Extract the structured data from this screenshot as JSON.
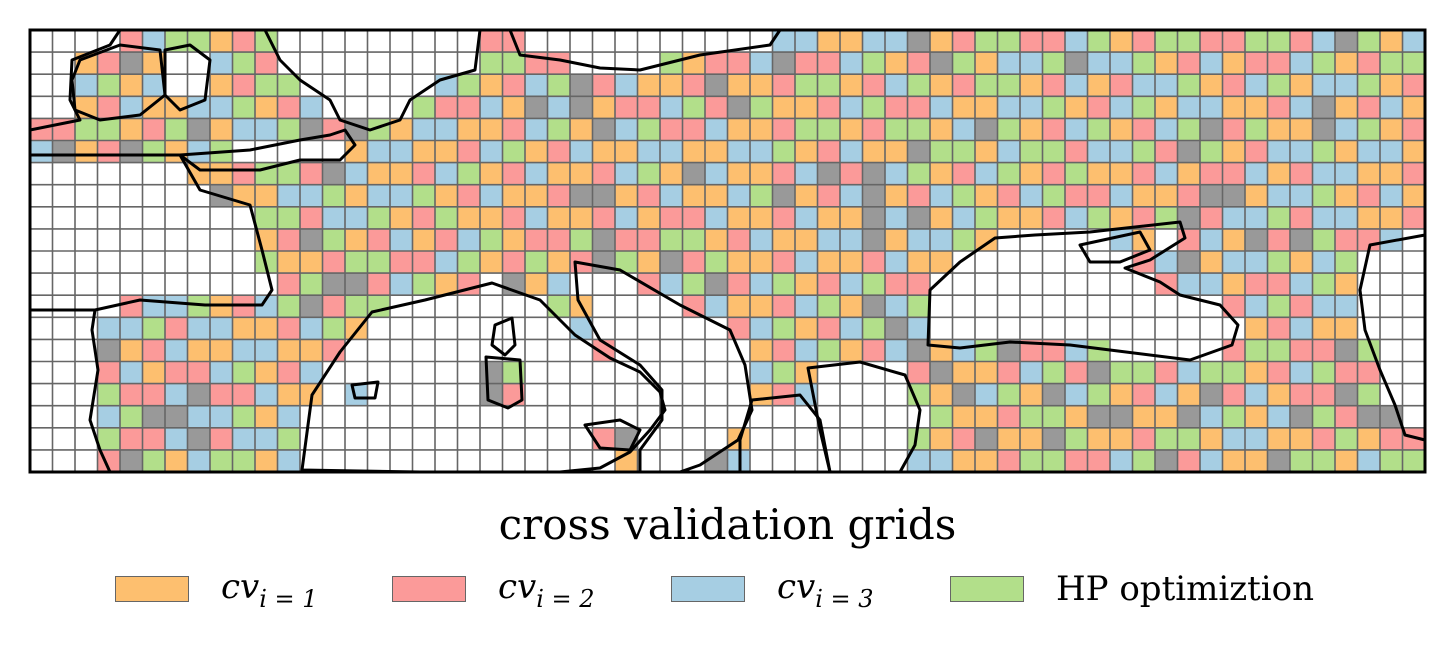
{
  "map": {
    "title": "cross validation grids",
    "grid": {
      "columns": 62,
      "rows": 20
    },
    "colors": {
      "cv_1": "#fdbf6f",
      "cv_2": "#fb9a99",
      "cv_3": "#a6cee3",
      "hp": "#b2df8a",
      "masked": "#999999",
      "sea": "#ffffff",
      "grid_line": "#666666",
      "coast": "#000000"
    }
  },
  "legend": [
    {
      "key": "cv_1",
      "base": "cv",
      "sub": "i = 1",
      "color": "#fdbf6f"
    },
    {
      "key": "cv_2",
      "base": "cv",
      "sub": "i = 2",
      "color": "#fb9a99"
    },
    {
      "key": "cv_3",
      "base": "cv",
      "sub": "i = 3",
      "color": "#a6cee3"
    },
    {
      "key": "hp",
      "label": "HP optimiztion",
      "color": "#b2df8a"
    }
  ]
}
